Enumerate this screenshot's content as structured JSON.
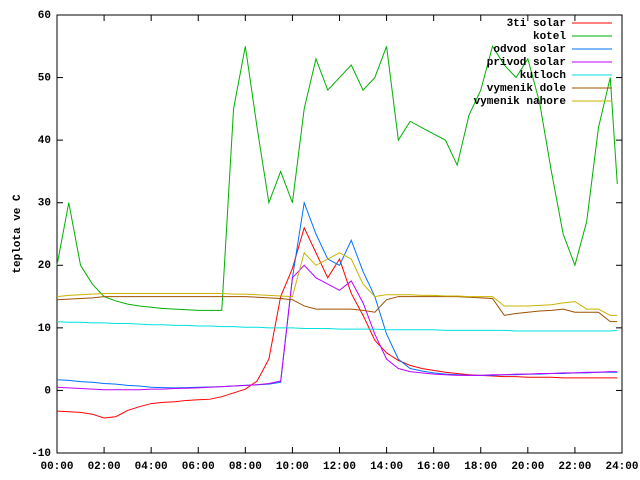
{
  "chart_data": {
    "type": "line",
    "ylabel": "teplota ve C",
    "x": [
      0,
      0.5,
      1,
      1.5,
      2,
      2.5,
      3,
      3.5,
      4,
      4.5,
      5,
      5.5,
      6,
      6.5,
      7,
      7.5,
      8,
      8.5,
      9,
      9.5,
      10,
      10.5,
      11,
      11.5,
      12,
      12.5,
      13,
      13.5,
      14,
      14.5,
      15,
      15.5,
      16,
      16.5,
      17,
      17.5,
      18,
      18.5,
      19,
      19.5,
      20,
      20.5,
      21,
      21.5,
      22,
      22.5,
      23,
      23.5,
      23.8
    ],
    "xlim": [
      0,
      24
    ],
    "xticks": [
      {
        "value": 0,
        "label": "00:00"
      },
      {
        "value": 2,
        "label": "02:00"
      },
      {
        "value": 4,
        "label": "04:00"
      },
      {
        "value": 6,
        "label": "06:00"
      },
      {
        "value": 8,
        "label": "08:00"
      },
      {
        "value": 10,
        "label": "10:00"
      },
      {
        "value": 12,
        "label": "12:00"
      },
      {
        "value": 14,
        "label": "14:00"
      },
      {
        "value": 16,
        "label": "16:00"
      },
      {
        "value": 18,
        "label": "18:00"
      },
      {
        "value": 20,
        "label": "20:00"
      },
      {
        "value": 22,
        "label": "22:00"
      },
      {
        "value": 24,
        "label": "24:00"
      }
    ],
    "ylim": [
      -10,
      60
    ],
    "yticks": [
      -10,
      0,
      10,
      20,
      30,
      40,
      50,
      60
    ],
    "legend": "upper-right",
    "series": [
      {
        "name": "3ti solar",
        "color": "#ff0000",
        "values": [
          -3.3,
          -3.4,
          -3.5,
          -3.8,
          -4.4,
          -4.2,
          -3.2,
          -2.6,
          -2.1,
          -1.9,
          -1.8,
          -1.6,
          -1.5,
          -1.4,
          -1,
          -0.4,
          0.2,
          1.5,
          5,
          15,
          19.5,
          26,
          22,
          18,
          21,
          15.5,
          12,
          8,
          6,
          4.8,
          4,
          3.5,
          3.2,
          2.9,
          2.7,
          2.5,
          2.4,
          2.3,
          2.2,
          2.2,
          2.1,
          2.1,
          2.1,
          2,
          2,
          2,
          2,
          2,
          2
        ]
      },
      {
        "name": "kotel",
        "color": "#00b000",
        "values": [
          20,
          30,
          20,
          17,
          15,
          14.3,
          13.8,
          13.5,
          13.3,
          13.1,
          13,
          12.9,
          12.8,
          12.8,
          12.8,
          45,
          55,
          42,
          30,
          35,
          30,
          45,
          53,
          48,
          50,
          52,
          48,
          50,
          55,
          40,
          43,
          42,
          41,
          40,
          36,
          44,
          48,
          55,
          52,
          50,
          53,
          46,
          35,
          25,
          20,
          27,
          42,
          50,
          33
        ]
      },
      {
        "name": "odvod solar",
        "color": "#0070ff",
        "values": [
          1.7,
          1.6,
          1.4,
          1.3,
          1.1,
          1,
          0.8,
          0.7,
          0.5,
          0.45,
          0.4,
          0.45,
          0.5,
          0.55,
          0.6,
          0.7,
          0.8,
          0.9,
          1,
          1.3,
          18,
          30,
          25,
          21,
          20,
          24,
          19,
          15,
          9,
          5,
          3.5,
          3.1,
          2.8,
          2.6,
          2.5,
          2.4,
          2.4,
          2.4,
          2.5,
          2.5,
          2.6,
          2.6,
          2.7,
          2.7,
          2.8,
          2.8,
          2.9,
          2.9,
          2.9
        ]
      },
      {
        "name": "privod solar",
        "color": "#c000ff",
        "values": [
          0.5,
          0.4,
          0.3,
          0.2,
          0.1,
          0.1,
          0.1,
          0.1,
          0.2,
          0.2,
          0.3,
          0.35,
          0.4,
          0.5,
          0.6,
          0.7,
          0.8,
          0.9,
          1.1,
          1.5,
          18,
          20,
          18,
          17,
          16,
          17.5,
          14,
          9,
          5,
          3.5,
          3,
          2.8,
          2.6,
          2.5,
          2.4,
          2.4,
          2.4,
          2.5,
          2.5,
          2.6,
          2.6,
          2.7,
          2.7,
          2.8,
          2.8,
          2.9,
          2.9,
          3,
          3
        ]
      },
      {
        "name": "kutloch",
        "color": "#00e0e0",
        "values": [
          11,
          10.9,
          10.9,
          10.8,
          10.8,
          10.7,
          10.7,
          10.6,
          10.5,
          10.5,
          10.4,
          10.4,
          10.3,
          10.3,
          10.2,
          10.2,
          10.1,
          10.1,
          10,
          10,
          10,
          9.9,
          9.9,
          9.9,
          9.8,
          9.8,
          9.8,
          9.8,
          9.7,
          9.7,
          9.7,
          9.7,
          9.7,
          9.6,
          9.6,
          9.6,
          9.6,
          9.6,
          9.6,
          9.5,
          9.5,
          9.5,
          9.5,
          9.5,
          9.5,
          9.5,
          9.5,
          9.5,
          9.6
        ]
      },
      {
        "name": "vymenik dole",
        "color": "#a05000",
        "values": [
          14.5,
          14.6,
          14.7,
          14.8,
          15,
          15,
          15,
          15,
          15,
          15,
          15,
          15,
          15,
          15,
          15,
          15,
          15,
          14.9,
          14.8,
          14.7,
          14.5,
          13.5,
          13,
          13,
          13,
          13,
          12.8,
          12.5,
          14.5,
          15,
          15,
          15,
          15,
          15,
          15,
          14.9,
          14.8,
          14.7,
          12,
          12.3,
          12.5,
          12.7,
          12.8,
          13,
          12.5,
          12.5,
          12.5,
          11,
          11
        ]
      },
      {
        "name": "vymenik nahore",
        "color": "#c8b400",
        "values": [
          15,
          15.2,
          15.3,
          15.4,
          15.5,
          15.5,
          15.5,
          15.5,
          15.5,
          15.5,
          15.5,
          15.5,
          15.5,
          15.5,
          15.5,
          15.4,
          15.4,
          15.3,
          15.2,
          15.1,
          15,
          22,
          20,
          21,
          22,
          21,
          17,
          15,
          15.3,
          15.3,
          15.3,
          15.2,
          15.2,
          15.1,
          15.1,
          15,
          15,
          15,
          13.5,
          13.5,
          13.5,
          13.6,
          13.7,
          14,
          14.2,
          13,
          13,
          12,
          12
        ]
      }
    ]
  }
}
